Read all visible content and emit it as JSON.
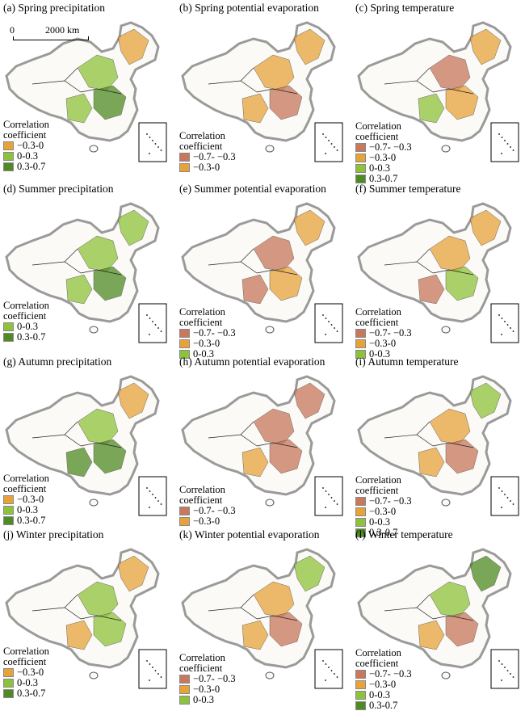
{
  "legend_title_line1": "Correlation",
  "legend_title_line2": "coefficient",
  "scale_bar": {
    "zero": "0",
    "distance": "2000 km"
  },
  "classes": {
    "neg_strong": {
      "label": "−0.7- −0.3",
      "color": "#c8785c"
    },
    "neg_weak": {
      "label": "−0.3-0",
      "color": "#e8a23a"
    },
    "pos_weak": {
      "label": "0-0.3",
      "color": "#8fc23c"
    },
    "pos_strong": {
      "label": "0.3-0.7",
      "color": "#4f8a22"
    }
  },
  "panels": [
    {
      "title": "(a) Spring precipitation",
      "legend": [
        "neg_weak",
        "pos_weak",
        "pos_strong"
      ]
    },
    {
      "title": "(b) Spring potential evaporation",
      "legend": [
        "neg_strong",
        "neg_weak"
      ]
    },
    {
      "title": "(c) Spring temperature",
      "legend": [
        "neg_strong",
        "neg_weak",
        "pos_weak",
        "pos_strong"
      ]
    },
    {
      "title": "(d) Summer precipitation",
      "legend": [
        "pos_weak",
        "pos_strong"
      ]
    },
    {
      "title": "(e) Summer potential evaporation",
      "legend": [
        "neg_strong",
        "neg_weak",
        "pos_weak"
      ]
    },
    {
      "title": "(f) Summer temperature",
      "legend": [
        "neg_strong",
        "neg_weak",
        "pos_weak"
      ]
    },
    {
      "title": "(g) Autumn precipitation",
      "legend": [
        "neg_weak",
        "pos_weak",
        "pos_strong"
      ]
    },
    {
      "title": "(h) Autumn potential evaporation",
      "legend": [
        "neg_strong",
        "neg_weak"
      ]
    },
    {
      "title": "(i) Autumn temperature",
      "legend": [
        "neg_strong",
        "neg_weak",
        "pos_weak",
        "pos_strong"
      ]
    },
    {
      "title": "(j) Winter precipitation",
      "legend": [
        "neg_weak",
        "pos_weak",
        "pos_strong"
      ]
    },
    {
      "title": "(k) Winter potential evaporation",
      "legend": [
        "neg_strong",
        "neg_weak",
        "pos_weak"
      ]
    },
    {
      "title": "(l) Winter temperature",
      "legend": [
        "neg_strong",
        "neg_weak",
        "pos_weak",
        "pos_strong"
      ]
    }
  ]
}
